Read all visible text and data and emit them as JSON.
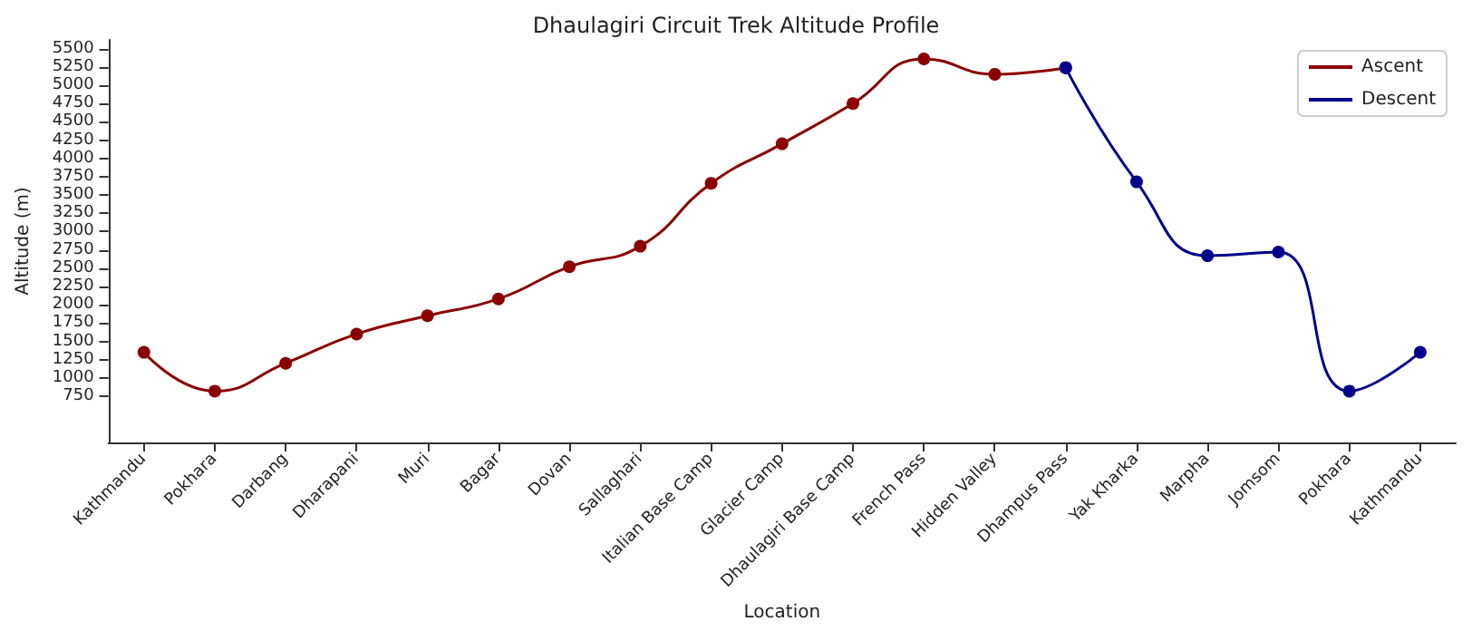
{
  "chart_data": {
    "type": "line",
    "title": "Dhaulagiri Circuit Trek Altitude Profile",
    "xlabel": "Location",
    "ylabel": "Altitude (m)",
    "categories": [
      "Kathmandu",
      "Pokhara",
      "Darbang",
      "Dharapani",
      "Muri",
      "Bagar",
      "Dovan",
      "Sallaghari",
      "Italian Base Camp",
      "Glacier Camp",
      "Dhaulagiri Base Camp",
      "French Pass",
      "Hidden Valley",
      "Dhampus Pass",
      "Yak Kharka",
      "Marpha",
      "Jomsom",
      "Pokhara",
      "Kathmandu"
    ],
    "series": [
      {
        "name": "Ascent",
        "color": "#8b0000",
        "values": [
          1350,
          820,
          1200,
          1600,
          1850,
          2080,
          2520,
          2800,
          3660,
          4200,
          4750,
          5360,
          5150,
          5240,
          null,
          null,
          null,
          null,
          null
        ]
      },
      {
        "name": "Descent",
        "color": "#00008b",
        "values": [
          null,
          null,
          null,
          null,
          null,
          null,
          null,
          null,
          null,
          null,
          null,
          null,
          null,
          5240,
          3680,
          2670,
          2720,
          820,
          1350
        ]
      }
    ],
    "ylim": [
      120,
      5620
    ],
    "yticks": [
      750,
      1000,
      1250,
      1500,
      1750,
      2000,
      2250,
      2500,
      2750,
      3000,
      3250,
      3500,
      3750,
      4000,
      4250,
      4500,
      4750,
      5000,
      5250,
      5500
    ],
    "grid": false,
    "legend": "top right",
    "marker": "circle",
    "line_style": "solid"
  }
}
